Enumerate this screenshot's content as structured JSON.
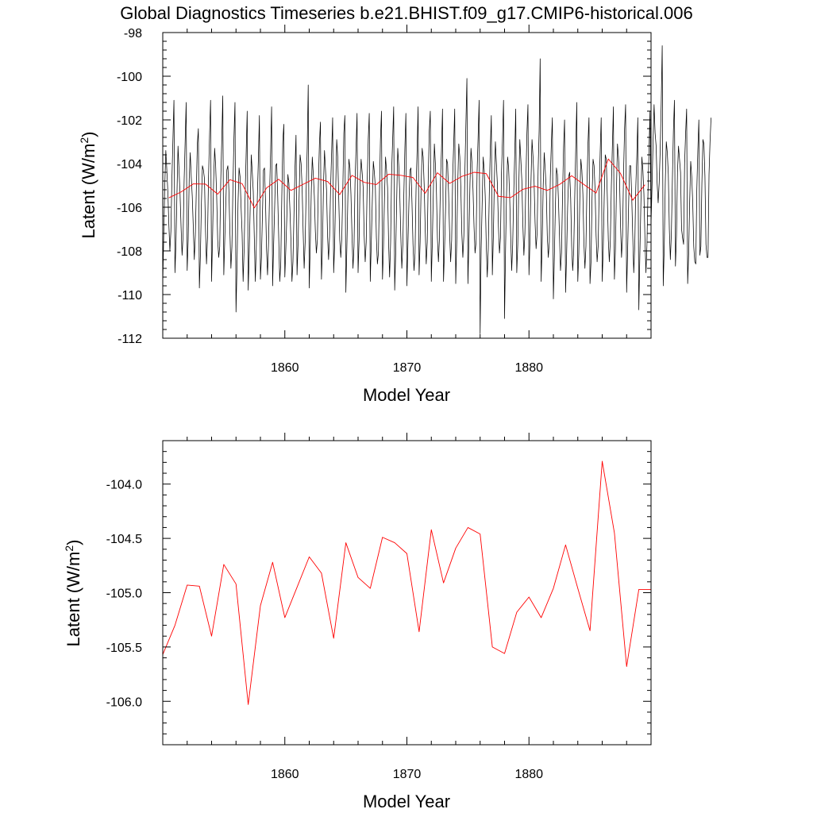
{
  "title": "Global Diagnostics Timeseries b.e21.BHIST.f09_g17.CMIP6-historical.006",
  "colors": {
    "monthly": "#000000",
    "annual": "#ff0000",
    "axes": "#000000"
  },
  "chart_data": [
    {
      "type": "line",
      "title": "Global Diagnostics Timeseries b.e21.BHIST.f09_g17.CMIP6-historical.006",
      "xlabel": "Model Year",
      "ylabel_main": "Latent (W/m",
      "ylabel_sup": "2",
      "ylabel_close": ")",
      "xlim": [
        1850,
        1890
      ],
      "ylim": [
        -112,
        -98
      ],
      "x_ticks": [
        1860,
        1870,
        1880
      ],
      "x_tick_labels": [
        "1860",
        "1870",
        "1880"
      ],
      "y_ticks": [
        -112,
        -110,
        -108,
        -106,
        -104,
        -102,
        -100,
        -98
      ],
      "y_tick_labels": [
        "-112",
        "-110",
        "-108",
        "-106",
        "-104",
        "-102",
        "-100",
        "-98"
      ],
      "series": [
        {
          "name": "monthly",
          "start_year": 1850,
          "step": 0.0833333,
          "values": [
            -109.5,
            -107.2,
            -105.0,
            -103.4,
            -104.3,
            -105.3,
            -106.8,
            -108.0,
            -107.1,
            -104.7,
            -102.9,
            -101.1,
            -109.0,
            -107.6,
            -105.3,
            -103.2,
            -104.3,
            -105.4,
            -106.9,
            -108.2,
            -107.3,
            -104.8,
            -103.0,
            -101.2,
            -108.9,
            -107.5,
            -104.7,
            -103.5,
            -104.6,
            -105.5,
            -106.9,
            -108.4,
            -107.3,
            -105.2,
            -103.1,
            -102.4,
            -109.7,
            -108.2,
            -105.8,
            -104.1,
            -104.3,
            -104.7,
            -107.0,
            -108.6,
            -107.4,
            -104.6,
            -102.7,
            -101.1,
            -109.4,
            -107.3,
            -104.8,
            -103.3,
            -104.1,
            -105.5,
            -107.5,
            -108.3,
            -107.8,
            -104.8,
            -103.0,
            -100.9,
            -109.1,
            -107.4,
            -105.8,
            -104.3,
            -104.1,
            -105.2,
            -107.1,
            -108.8,
            -107.8,
            -105.0,
            -102.8,
            -101.2,
            -110.8,
            -108.7,
            -105.8,
            -104.2,
            -104.6,
            -106.0,
            -107.2,
            -109.4,
            -107.9,
            -105.4,
            -103.5,
            -101.6,
            -109.8,
            -108.1,
            -105.9,
            -103.6,
            -104.4,
            -105.3,
            -107.4,
            -109.4,
            -107.7,
            -105.5,
            -103.8,
            -101.8,
            -109.3,
            -108.3,
            -106.3,
            -104.3,
            -104.2,
            -105.7,
            -107.9,
            -109.1,
            -107.6,
            -105.4,
            -103.5,
            -101.4,
            -109.6,
            -107.7,
            -106.0,
            -104.1,
            -104.0,
            -105.5,
            -107.4,
            -109.4,
            -108.6,
            -105.6,
            -103.0,
            -102.2,
            -109.2,
            -107.9,
            -106.4,
            -104.5,
            -104.9,
            -106.1,
            -107.5,
            -109.4,
            -108.5,
            -106.3,
            -104.2,
            -102.7,
            -109.1,
            -107.7,
            -105.6,
            -103.6,
            -104.0,
            -105.1,
            -107.1,
            -108.8,
            -107.6,
            -105.2,
            -103.3,
            -100.4,
            -109.7,
            -107.7,
            -105.3,
            -103.7,
            -104.5,
            -105.5,
            -107.1,
            -108.1,
            -107.5,
            -104.9,
            -103.1,
            -102.1,
            -109.3,
            -107.8,
            -105.0,
            -103.4,
            -104.3,
            -105.2,
            -107.3,
            -108.4,
            -107.3,
            -105.1,
            -103.5,
            -101.9,
            -109.0,
            -107.7,
            -105.2,
            -102.9,
            -103.7,
            -105.6,
            -107.5,
            -108.3,
            -107.4,
            -105.2,
            -102.6,
            -101.8,
            -109.9,
            -107.8,
            -105.5,
            -103.8,
            -104.2,
            -105.4,
            -107.2,
            -108.8,
            -107.8,
            -104.9,
            -103.3,
            -101.7,
            -109.0,
            -107.5,
            -104.8,
            -103.8,
            -104.4,
            -105.1,
            -107.3,
            -108.5,
            -107.6,
            -104.8,
            -102.9,
            -101.7,
            -109.4,
            -107.6,
            -105.7,
            -103.9,
            -104.4,
            -105.1,
            -107.4,
            -108.6,
            -108.1,
            -105.3,
            -102.9,
            -101.6,
            -109.3,
            -107.8,
            -105.5,
            -103.7,
            -104.3,
            -105.1,
            -107.6,
            -109.2,
            -107.6,
            -104.4,
            -102.9,
            -101.4,
            -109.8,
            -108.1,
            -105.6,
            -103.3,
            -104.1,
            -105.4,
            -107.3,
            -108.8,
            -107.7,
            -105.4,
            -103.3,
            -101.7,
            -109.6,
            -107.7,
            -105.8,
            -104.3,
            -104.2,
            -105.8,
            -107.7,
            -108.9,
            -108.1,
            -105.2,
            -103.5,
            -101.4,
            -109.1,
            -107.6,
            -105.0,
            -103.3,
            -103.7,
            -105.0,
            -107.0,
            -108.6,
            -107.6,
            -104.6,
            -102.5,
            -101.6,
            -109.4,
            -107.6,
            -105.3,
            -103.1,
            -104.0,
            -105.2,
            -107.4,
            -108.5,
            -107.4,
            -104.8,
            -103.4,
            -101.5,
            -109.4,
            -107.9,
            -106.1,
            -103.8,
            -104.0,
            -105.4,
            -107.2,
            -108.5,
            -107.5,
            -104.6,
            -103.1,
            -101.5,
            -109.5,
            -107.6,
            -104.9,
            -103.1,
            -103.7,
            -105.1,
            -107.2,
            -108.3,
            -107.3,
            -104.4,
            -102.2,
            -100.1,
            -109.5,
            -107.4,
            -104.9,
            -103.3,
            -104.0,
            -105.2,
            -106.9,
            -108.1,
            -107.6,
            -104.4,
            -102.8,
            -101.1,
            -111.8,
            -107.9,
            -105.8,
            -103.7,
            -104.3,
            -105.5,
            -107.7,
            -109.2,
            -107.9,
            -105.4,
            -103.3,
            -101.8,
            -109.1,
            -107.3,
            -104.7,
            -103.0,
            -104.0,
            -105.0,
            -106.9,
            -108.1,
            -107.4,
            -104.4,
            -102.9,
            -101.1,
            -111.1,
            -107.9,
            -105.3,
            -103.7,
            -104.2,
            -105.5,
            -107.3,
            -108.9,
            -107.7,
            -105.4,
            -103.6,
            -101.5,
            -109.0,
            -107.7,
            -105.0,
            -102.9,
            -103.8,
            -104.8,
            -106.8,
            -108.2,
            -107.2,
            -104.7,
            -102.6,
            -101.3,
            -109.1,
            -107.5,
            -104.8,
            -102.9,
            -103.7,
            -104.8,
            -106.7,
            -107.9,
            -107.2,
            -104.3,
            -102.5,
            -99.2,
            -109.4,
            -107.6,
            -105.0,
            -103.5,
            -104.3,
            -105.2,
            -107.3,
            -108.3,
            -107.6,
            -104.6,
            -103.1,
            -101.9,
            -110.2,
            -108.2,
            -105.9,
            -104.2,
            -104.5,
            -105.7,
            -107.3,
            -108.9,
            -108.1,
            -105.5,
            -103.3,
            -102.0,
            -109.9,
            -108.2,
            -106.0,
            -104.6,
            -104.4,
            -105.6,
            -107.8,
            -108.9,
            -108.0,
            -105.5,
            -103.3,
            -101.2,
            -109.4,
            -108.1,
            -105.6,
            -103.8,
            -104.3,
            -105.4,
            -107.6,
            -108.8,
            -107.8,
            -105.1,
            -103.1,
            -101.9,
            -109.5,
            -108.5,
            -105.6,
            -103.8,
            -104.1,
            -105.2,
            -107.3,
            -108.5,
            -107.8,
            -105.3,
            -103.5,
            -101.9,
            -109.4,
            -107.9,
            -105.5,
            -103.6,
            -103.8,
            -105.5,
            -107.5,
            -108.5,
            -107.5,
            -105.0,
            -103.2,
            -101.4,
            -109.3,
            -107.9,
            -105.2,
            -103.1,
            -103.7,
            -104.6,
            -106.8,
            -108.3,
            -107.3,
            -104.4,
            -102.4,
            -101.3,
            -109.9,
            -108.0,
            -105.8,
            -104.1,
            -104.1,
            -105.5,
            -107.3,
            -109.0,
            -107.8,
            -105.1,
            -103.7,
            -101.9,
            -110.7,
            -108.2,
            -105.9,
            -103.7,
            -104.3,
            -105.4,
            -107.4,
            -109.0,
            -107.7,
            -105.3,
            -103.4,
            -101.6,
            -106.8,
            -105.0,
            -103.0,
            -101.3,
            -102.6,
            -103.2,
            -104.9,
            -105.8,
            -104.9,
            -103.4,
            -101.3,
            -98.6,
            -109.6,
            -107.8,
            -104.9,
            -103.0,
            -103.5,
            -104.5,
            -107.0,
            -108.4,
            -107.2,
            -104.7,
            -102.5,
            -101.1,
            -108.7,
            -107.3,
            -104.4,
            -103.2,
            -103.8,
            -104.4,
            -107.0,
            -107.4,
            -107.7,
            -104.0,
            -102.6,
            -101.5,
            -109.5,
            -108.1,
            -105.7,
            -103.9,
            -104.6,
            -105.8,
            -107.8,
            -108.5,
            -108.6,
            -105.2,
            -103.4,
            -102.0,
            -108.2,
            -107.8,
            -104.9,
            -102.9,
            -103.1,
            -104.6,
            -107.7,
            -108.3,
            -108.3,
            -104.5,
            -103.0,
            -101.9
          ]
        },
        {
          "name": "annual",
          "x": [
            1850.5,
            1851.5,
            1852.5,
            1853.5,
            1854.5,
            1855.5,
            1856.5,
            1857.5,
            1858.5,
            1859.5,
            1860.5,
            1861.5,
            1862.5,
            1863.5,
            1864.5,
            1865.5,
            1866.5,
            1867.5,
            1868.5,
            1869.5,
            1870.5,
            1871.5,
            1872.5,
            1873.5,
            1874.5,
            1875.5,
            1876.5,
            1877.5,
            1878.5,
            1879.5,
            1880.5,
            1881.5,
            1882.5,
            1883.5,
            1884.5,
            1885.5,
            1886.5,
            1887.5,
            1888.5,
            1889.5
          ],
          "values": [
            -105.57,
            -105.3,
            -104.93,
            -104.94,
            -105.4,
            -104.74,
            -104.92,
            -106.03,
            -105.12,
            -104.72,
            -105.23,
            -104.95,
            -104.67,
            -104.82,
            -105.42,
            -104.54,
            -104.86,
            -104.96,
            -104.49,
            -104.54,
            -104.64,
            -105.36,
            -104.42,
            -104.91,
            -104.59,
            -104.4,
            -104.46,
            -105.5,
            -105.56,
            -105.18,
            -105.04,
            -105.23,
            -104.96,
            -104.56,
            -104.96,
            -105.35,
            -103.79,
            -104.45,
            -105.68,
            -104.97
          ]
        }
      ]
    },
    {
      "type": "line",
      "title": "",
      "xlabel": "Model Year",
      "ylabel_main": "Latent (W/m",
      "ylabel_sup": "2",
      "ylabel_close": ")",
      "xlim": [
        1850,
        1890
      ],
      "ylim": [
        -106.4,
        -103.6
      ],
      "x_ticks": [
        1860,
        1870,
        1880
      ],
      "x_tick_labels": [
        "1860",
        "1870",
        "1880"
      ],
      "y_ticks": [
        -106.0,
        -105.5,
        -105.0,
        -104.5,
        -104.0
      ],
      "y_tick_labels": [
        "-106.0",
        "-105.5",
        "-105.0",
        "-104.5",
        "-104.0"
      ],
      "series": [
        {
          "name": "annual",
          "x": [
            1850.0,
            1851.0,
            1852.0,
            1853.0,
            1854.0,
            1855.0,
            1856.0,
            1857.0,
            1858.0,
            1859.0,
            1860.0,
            1861.0,
            1862.0,
            1863.0,
            1864.0,
            1865.0,
            1866.0,
            1867.0,
            1868.0,
            1869.0,
            1870.0,
            1871.0,
            1872.0,
            1873.0,
            1874.0,
            1875.0,
            1876.0,
            1877.0,
            1878.0,
            1879.0,
            1880.0,
            1881.0,
            1882.0,
            1883.0,
            1884.0,
            1885.0,
            1886.0,
            1887.0,
            1888.0,
            1889.0,
            1890.0
          ],
          "values": [
            -105.57,
            -105.3,
            -104.93,
            -104.94,
            -105.4,
            -104.74,
            -104.92,
            -106.03,
            -105.12,
            -104.72,
            -105.23,
            -104.95,
            -104.67,
            -104.82,
            -105.42,
            -104.54,
            -104.86,
            -104.96,
            -104.49,
            -104.54,
            -104.64,
            -105.36,
            -104.42,
            -104.91,
            -104.59,
            -104.4,
            -104.46,
            -105.5,
            -105.56,
            -105.18,
            -105.04,
            -105.23,
            -104.96,
            -104.56,
            -104.96,
            -105.35,
            -103.79,
            -104.45,
            -105.68,
            -104.97,
            -104.97
          ]
        }
      ]
    }
  ]
}
